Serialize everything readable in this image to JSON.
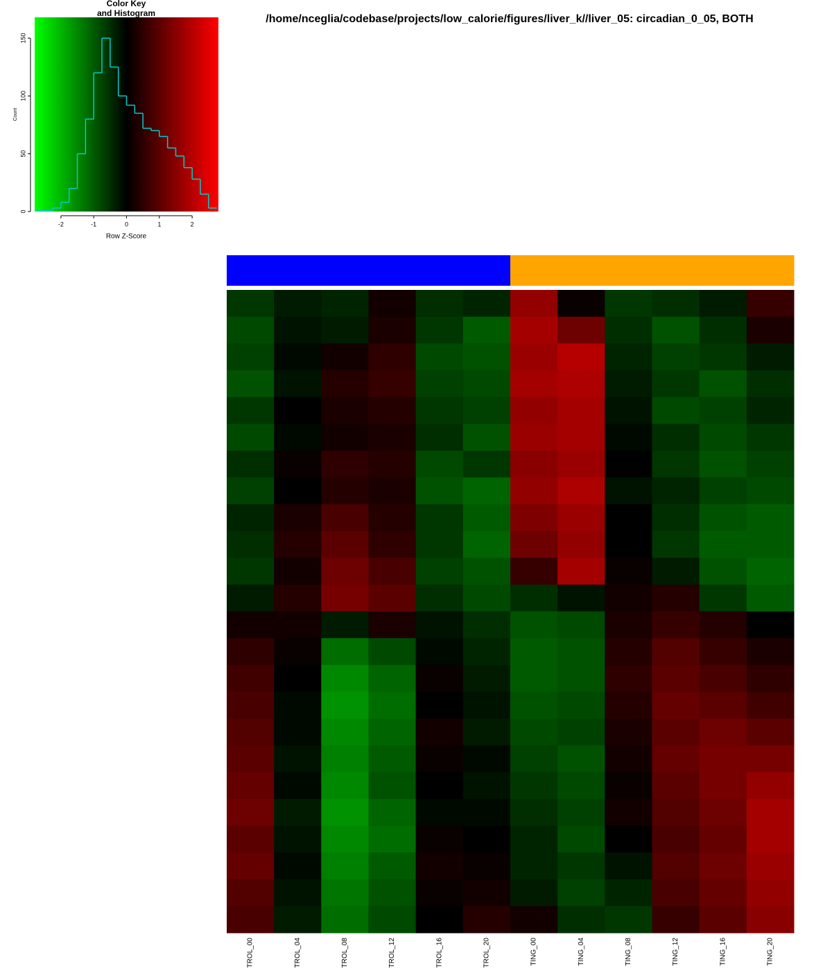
{
  "chart_data": [
    {
      "type": "histogram",
      "title": [
        "Color Key",
        "and Histogram"
      ],
      "xlabel": "Row Z-Score",
      "ylabel": "Count",
      "bins": [
        -2.75,
        -2.5,
        -2.25,
        -2,
        -1.75,
        -1.5,
        -1.25,
        -1,
        -0.75,
        -0.5,
        -0.25,
        0,
        0.25,
        0.5,
        0.75,
        1,
        1.25,
        1.5,
        1.75,
        2,
        2.25,
        2.5,
        2.75
      ],
      "values": [
        1,
        1,
        3,
        8,
        20,
        50,
        80,
        120,
        150,
        125,
        100,
        92,
        85,
        72,
        70,
        65,
        55,
        48,
        38,
        28,
        15,
        3
      ],
      "color": "#00cccc",
      "colors": [
        "#00ff00",
        "#000000",
        "#ff0000"
      ],
      "xlim": [
        -2.8,
        2.8
      ],
      "ylim": [
        0,
        168
      ],
      "xticks": [
        -2,
        -1,
        0,
        1,
        2
      ],
      "yticks": [
        0,
        50,
        100,
        150
      ]
    },
    {
      "type": "heatmap",
      "title": "/home/nceglia/codebase/projects/low_calorie/figures/liver_k//liver_05: circadian_0_05, BOTH",
      "categories": [
        "TROL_00",
        "TROL_04",
        "TROL_08",
        "TROL_12",
        "TROL_16",
        "TROL_20",
        "TING_00",
        "TING_04",
        "TING_08",
        "TING_12",
        "TING_16",
        "TING_20"
      ],
      "column_colors": [
        "#0000ff",
        "#0000ff",
        "#0000ff",
        "#0000ff",
        "#0000ff",
        "#0000ff",
        "#ffa500",
        "#ffa500",
        "#ffa500",
        "#ffa500",
        "#ffa500",
        "#ffa500"
      ],
      "values": [
        [
          -0.6,
          -0.3,
          -0.4,
          0.2,
          -0.5,
          -0.4,
          1.6,
          0.1,
          -0.6,
          -0.5,
          -0.3,
          0.6
        ],
        [
          -0.8,
          -0.2,
          -0.3,
          0.3,
          -0.6,
          -1.0,
          1.8,
          1.2,
          -0.5,
          -0.9,
          -0.5,
          0.3
        ],
        [
          -0.7,
          -0.1,
          0.2,
          0.5,
          -0.8,
          -0.9,
          1.7,
          2.0,
          -0.4,
          -0.7,
          -0.6,
          -0.3
        ],
        [
          -0.9,
          -0.2,
          0.4,
          0.6,
          -0.7,
          -0.8,
          1.8,
          1.9,
          -0.3,
          -0.6,
          -0.9,
          -0.5
        ],
        [
          -0.6,
          0.0,
          0.3,
          0.4,
          -0.6,
          -0.7,
          1.6,
          1.8,
          -0.2,
          -0.8,
          -0.7,
          -0.4
        ],
        [
          -0.8,
          -0.1,
          0.2,
          0.3,
          -0.5,
          -0.9,
          1.7,
          1.8,
          -0.1,
          -0.5,
          -0.8,
          -0.6
        ],
        [
          -0.5,
          0.1,
          0.5,
          0.4,
          -0.8,
          -0.6,
          1.5,
          1.7,
          0.0,
          -0.6,
          -0.9,
          -0.7
        ],
        [
          -0.7,
          0.0,
          0.4,
          0.3,
          -0.9,
          -1.1,
          1.6,
          1.9,
          -0.2,
          -0.4,
          -0.7,
          -0.8
        ],
        [
          -0.4,
          0.3,
          0.8,
          0.4,
          -0.6,
          -1.0,
          1.4,
          1.7,
          0.0,
          -0.5,
          -0.9,
          -1.0
        ],
        [
          -0.5,
          0.4,
          1.0,
          0.5,
          -0.6,
          -1.1,
          1.2,
          1.6,
          0.0,
          -0.6,
          -1.0,
          -1.0
        ],
        [
          -0.6,
          0.2,
          1.2,
          0.8,
          -0.7,
          -0.9,
          0.6,
          1.8,
          0.1,
          -0.3,
          -0.9,
          -1.1
        ],
        [
          -0.3,
          0.4,
          1.3,
          1.0,
          -0.5,
          -0.8,
          -0.5,
          -0.2,
          0.2,
          0.4,
          -0.6,
          -1.0
        ],
        [
          0.2,
          0.2,
          -0.3,
          0.3,
          -0.2,
          -0.5,
          -0.9,
          -0.8,
          0.3,
          0.6,
          0.4,
          0.0
        ],
        [
          0.5,
          0.1,
          -1.2,
          -0.8,
          -0.1,
          -0.4,
          -1.0,
          -0.9,
          0.4,
          0.9,
          0.6,
          0.3
        ],
        [
          0.7,
          0.0,
          -1.5,
          -1.1,
          0.1,
          -0.3,
          -1.0,
          -0.9,
          0.5,
          1.0,
          0.8,
          0.5
        ],
        [
          0.8,
          -0.1,
          -1.6,
          -1.2,
          0.0,
          -0.2,
          -0.9,
          -0.8,
          0.4,
          1.1,
          1.0,
          0.7
        ],
        [
          0.9,
          -0.1,
          -1.5,
          -1.1,
          0.2,
          -0.3,
          -0.8,
          -0.7,
          0.3,
          1.0,
          1.2,
          1.0
        ],
        [
          1.0,
          -0.2,
          -1.4,
          -1.0,
          0.1,
          -0.1,
          -0.7,
          -0.9,
          0.2,
          1.1,
          1.3,
          1.3
        ],
        [
          1.1,
          -0.1,
          -1.5,
          -0.9,
          0.0,
          -0.2,
          -0.6,
          -0.8,
          0.1,
          1.0,
          1.3,
          1.6
        ],
        [
          1.2,
          -0.3,
          -1.6,
          -1.1,
          -0.1,
          -0.1,
          -0.5,
          -0.7,
          0.2,
          0.9,
          1.2,
          1.8
        ],
        [
          1.0,
          -0.2,
          -1.5,
          -1.2,
          0.1,
          0.0,
          -0.4,
          -0.8,
          0.0,
          0.8,
          1.1,
          1.8
        ],
        [
          1.1,
          -0.1,
          -1.4,
          -1.0,
          0.2,
          0.1,
          -0.4,
          -0.6,
          -0.2,
          0.9,
          1.2,
          1.7
        ],
        [
          0.9,
          -0.2,
          -1.3,
          -0.9,
          0.1,
          0.2,
          -0.3,
          -0.7,
          -0.4,
          0.8,
          1.1,
          1.6
        ],
        [
          0.8,
          -0.3,
          -1.2,
          -0.8,
          0.0,
          0.4,
          0.2,
          -0.5,
          -0.6,
          0.6,
          1.0,
          1.5
        ]
      ]
    }
  ]
}
